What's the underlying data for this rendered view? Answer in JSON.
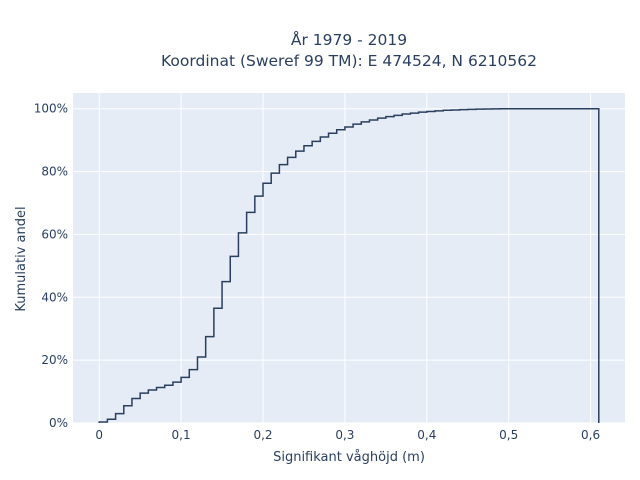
{
  "chart_data": {
    "type": "line",
    "line_shape": "step",
    "title": "År 1979 - 2019",
    "subtitle": "Koordinat (Sweref 99 TM): E 474524, N 6210562",
    "xlabel": "Signifikant våghöjd (m)",
    "ylabel": "Kumulativ andel",
    "xlim": [
      -0.032,
      0.642
    ],
    "ylim": [
      0,
      1.05
    ],
    "x_ticks": [
      0,
      0.1,
      0.2,
      0.3,
      0.4,
      0.5,
      0.6
    ],
    "x_tick_labels": [
      "0",
      "0,1",
      "0,2",
      "0,3",
      "0,4",
      "0,5",
      "0,6"
    ],
    "y_ticks": [
      0,
      0.2,
      0.4,
      0.6,
      0.8,
      1.0
    ],
    "y_tick_labels": [
      "0%",
      "20%",
      "40%",
      "60%",
      "80%",
      "100%"
    ],
    "grid": true,
    "colors": {
      "plot_background": "#e5ecf6",
      "grid": "#ffffff",
      "line": "#2a3f5f",
      "text": "#2a3f5f"
    },
    "series": [
      {
        "x": [
          0,
          0.01,
          0.02,
          0.03,
          0.04,
          0.05,
          0.06,
          0.07,
          0.08,
          0.09,
          0.1,
          0.11,
          0.12,
          0.13,
          0.14,
          0.15,
          0.16,
          0.17,
          0.18,
          0.19,
          0.2,
          0.21,
          0.22,
          0.23,
          0.24,
          0.25,
          0.26,
          0.27,
          0.28,
          0.29,
          0.3,
          0.31,
          0.32,
          0.33,
          0.34,
          0.35,
          0.36,
          0.37,
          0.38,
          0.39,
          0.4,
          0.41,
          0.42,
          0.43,
          0.44,
          0.45,
          0.46,
          0.47,
          0.48,
          0.49,
          0.5,
          0.61
        ],
        "y": [
          0.003,
          0.012,
          0.03,
          0.055,
          0.078,
          0.095,
          0.105,
          0.113,
          0.12,
          0.13,
          0.145,
          0.17,
          0.21,
          0.275,
          0.365,
          0.45,
          0.53,
          0.605,
          0.67,
          0.722,
          0.763,
          0.795,
          0.822,
          0.845,
          0.865,
          0.882,
          0.896,
          0.91,
          0.922,
          0.933,
          0.942,
          0.951,
          0.958,
          0.964,
          0.97,
          0.975,
          0.979,
          0.983,
          0.986,
          0.989,
          0.991,
          0.993,
          0.995,
          0.996,
          0.997,
          0.998,
          0.9985,
          0.999,
          0.9995,
          1.0,
          1.0,
          1.0
        ]
      }
    ]
  }
}
